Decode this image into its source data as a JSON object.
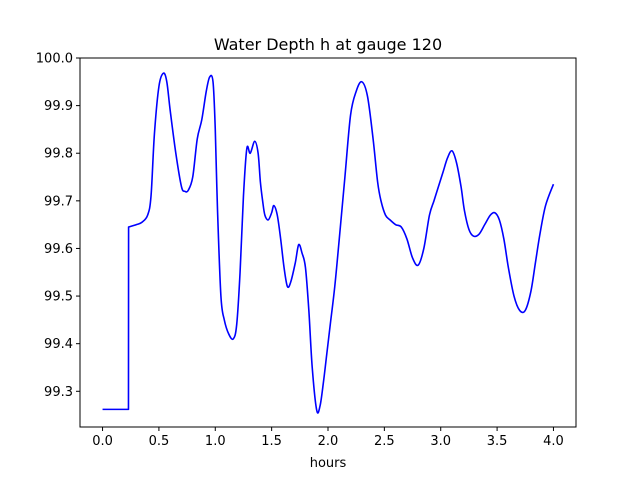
{
  "chart_data": {
    "type": "line",
    "title": "Water Depth h at gauge 120",
    "xlabel": "hours",
    "ylabel": "",
    "xlim": [
      -0.2,
      4.2
    ],
    "ylim": [
      99.225,
      100.0
    ],
    "xticks": [
      0.0,
      0.5,
      1.0,
      1.5,
      2.0,
      2.5,
      3.0,
      3.5,
      4.0
    ],
    "xtick_labels": [
      "0.0",
      "0.5",
      "1.0",
      "1.5",
      "2.0",
      "2.5",
      "3.0",
      "3.5",
      "4.0"
    ],
    "yticks": [
      99.3,
      99.4,
      99.5,
      99.6,
      99.7,
      99.8,
      99.9,
      100.0
    ],
    "ytick_labels": [
      "99.3",
      "99.4",
      "99.5",
      "99.6",
      "99.7",
      "99.8",
      "99.9",
      "100.0"
    ],
    "grid": false,
    "series": [
      {
        "color": "#0000ff",
        "x": [
          0.0,
          0.12,
          0.23,
          0.231,
          0.3,
          0.35,
          0.4,
          0.43,
          0.46,
          0.5,
          0.54,
          0.57,
          0.6,
          0.65,
          0.7,
          0.73,
          0.76,
          0.8,
          0.84,
          0.88,
          0.92,
          0.95,
          0.98,
          1.0,
          1.02,
          1.05,
          1.08,
          1.12,
          1.16,
          1.19,
          1.22,
          1.25,
          1.28,
          1.31,
          1.35,
          1.38,
          1.4,
          1.42,
          1.44,
          1.47,
          1.5,
          1.52,
          1.55,
          1.58,
          1.61,
          1.64,
          1.67,
          1.71,
          1.74,
          1.77,
          1.8,
          1.83,
          1.86,
          1.9,
          1.93,
          1.96,
          1.99,
          2.02,
          2.06,
          2.1,
          2.15,
          2.2,
          2.25,
          2.3,
          2.35,
          2.4,
          2.44,
          2.47,
          2.51,
          2.55,
          2.6,
          2.65,
          2.7,
          2.75,
          2.8,
          2.85,
          2.9,
          2.94,
          2.98,
          3.02,
          3.06,
          3.1,
          3.14,
          3.18,
          3.21,
          3.25,
          3.29,
          3.34,
          3.39,
          3.44,
          3.48,
          3.52,
          3.56,
          3.6,
          3.65,
          3.7,
          3.75,
          3.8,
          3.84,
          3.88,
          3.93,
          4.0
        ],
        "y": [
          99.262,
          99.262,
          99.262,
          99.645,
          99.65,
          99.655,
          99.67,
          99.71,
          99.84,
          99.94,
          99.968,
          99.95,
          99.89,
          99.8,
          99.73,
          99.72,
          99.722,
          99.75,
          99.83,
          99.87,
          99.93,
          99.96,
          99.95,
          99.85,
          99.68,
          99.5,
          99.45,
          99.42,
          99.41,
          99.44,
          99.55,
          99.71,
          99.81,
          99.8,
          99.825,
          99.8,
          99.74,
          99.7,
          99.67,
          99.66,
          99.675,
          99.69,
          99.67,
          99.62,
          99.56,
          99.52,
          99.53,
          99.57,
          99.608,
          99.59,
          99.56,
          99.47,
          99.35,
          99.26,
          99.27,
          99.32,
          99.38,
          99.44,
          99.52,
          99.62,
          99.75,
          99.88,
          99.93,
          99.95,
          99.92,
          99.83,
          99.74,
          99.7,
          99.67,
          99.66,
          99.65,
          99.645,
          99.62,
          99.58,
          99.565,
          99.6,
          99.67,
          99.7,
          99.73,
          99.76,
          99.79,
          99.805,
          99.78,
          99.73,
          99.68,
          99.64,
          99.626,
          99.63,
          99.65,
          99.67,
          99.675,
          99.66,
          99.62,
          99.56,
          99.5,
          99.47,
          99.47,
          99.51,
          99.57,
          99.63,
          99.69,
          99.735
        ]
      }
    ]
  }
}
